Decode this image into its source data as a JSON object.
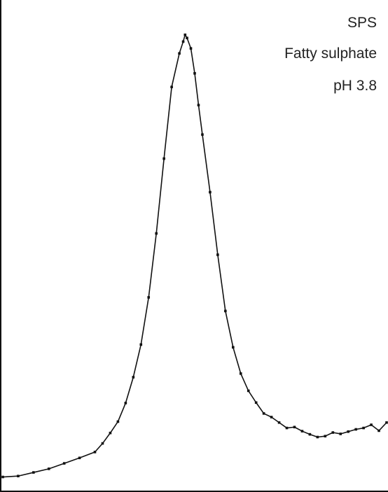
{
  "chart_data": {
    "type": "line",
    "title": "",
    "xlabel": "",
    "ylabel": "",
    "grid": false,
    "legend": "none",
    "annotations": [
      "SPS",
      "Fatty sulphate",
      "pH 3.8"
    ],
    "xlim": [
      0,
      1
    ],
    "ylim": [
      0,
      1
    ],
    "series_color": "#111111",
    "marker": "small-square",
    "series": [
      {
        "x": [
          0.0,
          0.04,
          0.08,
          0.12,
          0.16,
          0.2,
          0.24,
          0.26,
          0.28,
          0.3,
          0.32,
          0.34,
          0.36,
          0.38,
          0.4,
          0.42,
          0.44,
          0.46,
          0.47,
          0.475,
          0.48,
          0.49,
          0.5,
          0.51,
          0.52,
          0.54,
          0.56,
          0.58,
          0.6,
          0.62,
          0.64,
          0.66,
          0.68,
          0.7,
          0.72,
          0.74,
          0.76,
          0.78,
          0.8,
          0.82,
          0.84,
          0.86,
          0.88,
          0.9,
          0.92,
          0.94,
          0.96,
          0.98,
          1.0
        ],
        "y": [
          0.01,
          0.012,
          0.02,
          0.028,
          0.04,
          0.052,
          0.065,
          0.084,
          0.107,
          0.132,
          0.173,
          0.23,
          0.302,
          0.406,
          0.547,
          0.712,
          0.87,
          0.944,
          0.97,
          0.985,
          0.978,
          0.955,
          0.9,
          0.83,
          0.765,
          0.638,
          0.5,
          0.376,
          0.296,
          0.238,
          0.2,
          0.174,
          0.15,
          0.142,
          0.13,
          0.118,
          0.12,
          0.111,
          0.104,
          0.098,
          0.1,
          0.108,
          0.105,
          0.11,
          0.115,
          0.118,
          0.125,
          0.112,
          0.13
        ]
      }
    ]
  }
}
